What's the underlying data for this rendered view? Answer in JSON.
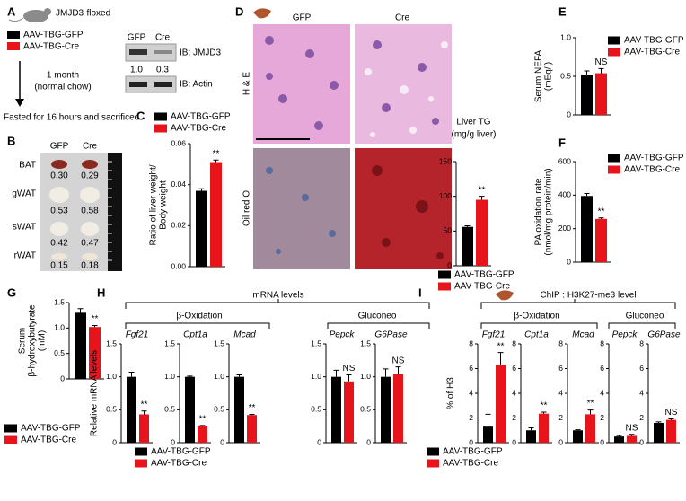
{
  "panels": {
    "A": {
      "letter": "A",
      "strain": "JMJD3-floxed",
      "legend": [
        "AAV-TBG-GFP",
        "AAV-TBG-Cre"
      ],
      "duration": "1 month",
      "diet": "(normal chow)",
      "outcome": "Fasted for 16 hours and sacrificed",
      "blot": {
        "lanes": [
          "GFP",
          "Cre"
        ],
        "jmjd3": "IB: JMJD3",
        "ratios": [
          "1.0",
          "0.3"
        ],
        "actin": "IB: Actin"
      }
    },
    "B": {
      "letter": "B",
      "lanes": [
        "GFP",
        "Cre"
      ],
      "tissues": [
        "BAT",
        "gWAT",
        "sWAT",
        "rWAT"
      ],
      "ratios": [
        [
          "0.30",
          "0.29"
        ],
        [
          "0.53",
          "0.58"
        ],
        [
          "0.42",
          "0.47"
        ],
        [
          "0.15",
          "0.18"
        ]
      ]
    },
    "D": {
      "letter": "D",
      "columns": [
        "GFP",
        "Cre"
      ],
      "rows": [
        "H & E",
        "Oil red O"
      ]
    },
    "H": {
      "letter": "H",
      "title": "mRNA levels",
      "groups": [
        "β-Oxidation",
        "Gluconeo"
      ]
    },
    "I": {
      "letter": "I",
      "title": "ChIP : H3K27-me3 level",
      "groups": [
        "β-Oxidation",
        "Gluconeo"
      ]
    }
  },
  "chart_data": [
    {
      "type": "bar",
      "panel": "C",
      "ylabel": [
        "Ratio of liver weight/",
        "Body weight"
      ],
      "ylim": [
        0,
        0.06
      ],
      "yticks": [
        {
          "value": 0,
          "label": "0.00"
        },
        0.02,
        0.04,
        0.06
      ],
      "annotation": "**",
      "series": [
        {
          "name": "AAV-TBG-GFP",
          "color": "#000000",
          "values": [
            0.037
          ],
          "errors": [
            0.001
          ]
        },
        {
          "name": "AAV-TBG-Cre",
          "color": "#e8141b",
          "values": [
            0.051
          ],
          "errors": [
            0.001
          ]
        }
      ]
    },
    {
      "type": "bar",
      "title": [
        "Liver TG",
        "(mg/g liver)"
      ],
      "ylim": [
        0,
        150
      ],
      "yticks": [
        0,
        50,
        100,
        150
      ],
      "annotation": "**",
      "series": [
        {
          "name": "AAV-TBG-GFP",
          "color": "#000000",
          "values": [
            56
          ],
          "errors": [
            1.5
          ]
        },
        {
          "name": "AAV-TBG-Cre",
          "color": "#e8141b",
          "values": [
            95
          ],
          "errors": [
            5
          ]
        }
      ]
    },
    {
      "type": "bar",
      "panel": "E",
      "ylabel": [
        "Serum NEFA",
        "(mEq/l)"
      ],
      "ylim": [
        0,
        1
      ],
      "yticks": [
        0,
        0.5,
        {
          "value": 1,
          "label": "1.0"
        }
      ],
      "annotation": "NS",
      "series": [
        {
          "name": "AAV-TBG-GFP",
          "color": "#000000",
          "values": [
            0.52
          ],
          "errors": [
            0.05
          ]
        },
        {
          "name": "AAV-TBG-Cre",
          "color": "#e8141b",
          "values": [
            0.54
          ],
          "errors": [
            0.06
          ]
        }
      ]
    },
    {
      "type": "bar",
      "panel": "F",
      "ylabel": [
        "PA oxidation rate",
        "(nmol/mg protein/min)"
      ],
      "ylim": [
        0,
        600
      ],
      "yticks": [
        0,
        200,
        400,
        600
      ],
      "annotation": "**",
      "series": [
        {
          "name": "AAV-TBG-GFP",
          "color": "#000000",
          "values": [
            395
          ],
          "errors": [
            15
          ]
        },
        {
          "name": "AAV-TBG-Cre",
          "color": "#e8141b",
          "values": [
            258
          ],
          "errors": [
            6
          ]
        }
      ]
    },
    {
      "type": "bar",
      "panel": "G",
      "ylabel": [
        "Serum",
        "β-hydroxybutyrate",
        "(mM)"
      ],
      "ylim": [
        0,
        1.5
      ],
      "yticks": [
        0,
        0.5,
        {
          "value": 1,
          "label": "1.0"
        },
        1.5
      ],
      "annotation": "**",
      "series": [
        {
          "name": "AAV-TBG-GFP",
          "color": "#000000",
          "values": [
            1.3
          ],
          "errors": [
            0.08
          ]
        },
        {
          "name": "AAV-TBG-Cre",
          "color": "#e8141b",
          "values": [
            1.02
          ],
          "errors": [
            0.03
          ]
        }
      ]
    },
    {
      "type": "bar",
      "title": [
        "Fgf21"
      ],
      "ylabel": [
        "Relative mRNA levels"
      ],
      "ylim": [
        0,
        1.5
      ],
      "yticks": [
        0,
        0.5,
        {
          "value": 1,
          "label": "1.0"
        },
        1.5
      ],
      "annotation": "**",
      "series": [
        {
          "name": "AAV-TBG-GFP",
          "color": "#000000",
          "values": [
            1.0
          ],
          "errors": [
            0.07
          ]
        },
        {
          "name": "AAV-TBG-Cre",
          "color": "#e8141b",
          "values": [
            0.43
          ],
          "errors": [
            0.05
          ]
        }
      ]
    },
    {
      "type": "bar",
      "title": [
        "Cpt1a"
      ],
      "ylim": [
        0,
        1.5
      ],
      "yticks": [
        0,
        0.5,
        {
          "value": 1,
          "label": "1.0"
        },
        1.5
      ],
      "annotation": "**",
      "series": [
        {
          "color": "#000000",
          "values": [
            1.0
          ],
          "errors": [
            0.01
          ]
        },
        {
          "color": "#e8141b",
          "values": [
            0.25
          ],
          "errors": [
            0.01
          ]
        }
      ]
    },
    {
      "type": "bar",
      "title": [
        "Mcad"
      ],
      "ylim": [
        0,
        1.5
      ],
      "yticks": [
        0,
        0.5,
        {
          "value": 1,
          "label": "1.0"
        },
        1.5
      ],
      "annotation": "**",
      "series": [
        {
          "color": "#000000",
          "values": [
            1.0
          ],
          "errors": [
            0.03
          ]
        },
        {
          "color": "#e8141b",
          "values": [
            0.42
          ],
          "errors": [
            0.01
          ]
        }
      ]
    },
    {
      "type": "bar",
      "title": [
        "Pepck"
      ],
      "ylim": [
        0,
        1.5
      ],
      "yticks": [
        0,
        0.5,
        {
          "value": 1,
          "label": "1.0"
        },
        1.5
      ],
      "annotation": "NS",
      "series": [
        {
          "color": "#000000",
          "values": [
            1.0
          ],
          "errors": [
            0.1
          ]
        },
        {
          "color": "#e8141b",
          "values": [
            0.93
          ],
          "errors": [
            0.1
          ]
        }
      ]
    },
    {
      "type": "bar",
      "title": [
        "G6Pase"
      ],
      "ylim": [
        0,
        1.5
      ],
      "yticks": [
        0,
        0.5,
        {
          "value": 1,
          "label": "1.0"
        },
        1.5
      ],
      "annotation": "NS",
      "series": [
        {
          "color": "#000000",
          "values": [
            1.0
          ],
          "errors": [
            0.12
          ]
        },
        {
          "color": "#e8141b",
          "values": [
            1.05
          ],
          "errors": [
            0.1
          ]
        }
      ]
    },
    {
      "type": "bar",
      "title": [
        "Fgf21"
      ],
      "ylabel": [
        "% of H3"
      ],
      "ylim": [
        0,
        8
      ],
      "yticks": [
        0,
        2,
        4,
        6,
        8
      ],
      "annotation": "**",
      "series": [
        {
          "name": "AAV-TBG-GFP",
          "color": "#000000",
          "values": [
            1.3
          ],
          "errors": [
            1.0
          ]
        },
        {
          "name": "AAV-TBG-Cre",
          "color": "#e8141b",
          "values": [
            6.3
          ],
          "errors": [
            1.0
          ]
        }
      ]
    },
    {
      "type": "bar",
      "title": [
        "Cpt1a"
      ],
      "ylim": [
        0,
        8
      ],
      "yticks": [
        0,
        2,
        4,
        6,
        8
      ],
      "annotation": "**",
      "series": [
        {
          "color": "#000000",
          "values": [
            1.0
          ],
          "errors": [
            0.2
          ]
        },
        {
          "color": "#e8141b",
          "values": [
            2.35
          ],
          "errors": [
            0.12
          ]
        }
      ]
    },
    {
      "type": "bar",
      "title": [
        "Mcad"
      ],
      "ylim": [
        0,
        8
      ],
      "yticks": [
        0,
        2,
        4,
        6,
        8
      ],
      "annotation": "**",
      "series": [
        {
          "color": "#000000",
          "values": [
            1.0
          ],
          "errors": [
            0.05
          ]
        },
        {
          "color": "#e8141b",
          "values": [
            2.3
          ],
          "errors": [
            0.35
          ]
        }
      ]
    },
    {
      "type": "bar",
      "title": [
        "Pepck"
      ],
      "ylim": [
        0,
        8
      ],
      "yticks": [
        0,
        2,
        4,
        6,
        8
      ],
      "annotation": "NS",
      "series": [
        {
          "color": "#000000",
          "values": [
            0.5
          ],
          "errors": [
            0.07
          ]
        },
        {
          "color": "#e8141b",
          "values": [
            0.55
          ],
          "errors": [
            0.12
          ]
        }
      ]
    },
    {
      "type": "bar",
      "title": [
        "G6Pase"
      ],
      "ylim": [
        0,
        8
      ],
      "yticks": [
        0,
        2,
        4,
        6,
        8
      ],
      "annotation": "NS",
      "series": [
        {
          "color": "#000000",
          "values": [
            1.6
          ],
          "errors": [
            0.08
          ]
        },
        {
          "color": "#e8141b",
          "values": [
            1.85
          ],
          "errors": [
            0.08
          ]
        }
      ]
    }
  ]
}
